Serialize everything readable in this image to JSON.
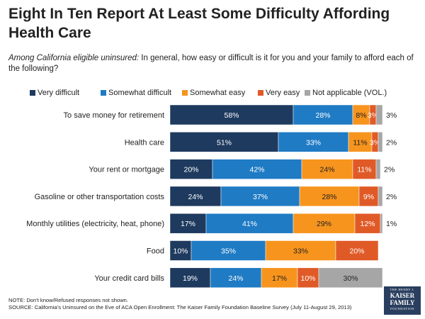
{
  "header": {
    "title": "Eight In Ten Report At Least Some Difficulty Affording Health Care",
    "subtitle_lead": "Among California eligible uninsured:",
    "subtitle_rest": " In general, how easy or difficult is it for you and your family to afford each of the following?"
  },
  "colors": {
    "Very difficult": "#1e3a5f",
    "Somewhat difficult": "#1f7bc4",
    "Somewhat easy": "#f7941d",
    "Very easy": "#e05a27",
    "Not applicable (VOL.)": "#a6a6a6"
  },
  "chart_data": {
    "type": "bar",
    "orientation": "horizontal",
    "stacked": true,
    "title": "Eight In Ten Report At Least Some Difficulty Affording Health Care",
    "xlabel": "",
    "ylabel": "",
    "xlim": [
      0,
      100
    ],
    "legend_position": "top",
    "categories": [
      "To save money for retirement",
      "Health care",
      "Your rent or mortgage",
      "Gasoline or other transportation costs",
      "Monthly utilities (electricity, heat, phone)",
      "Food",
      "Your credit card bills"
    ],
    "series": [
      {
        "name": "Very difficult",
        "values": [
          58,
          51,
          20,
          24,
          17,
          10,
          19
        ]
      },
      {
        "name": "Somewhat difficult",
        "values": [
          28,
          33,
          42,
          37,
          41,
          35,
          24
        ]
      },
      {
        "name": "Somewhat easy",
        "values": [
          8,
          11,
          24,
          28,
          29,
          33,
          17
        ]
      },
      {
        "name": "Very easy",
        "values": [
          3,
          3,
          11,
          9,
          12,
          20,
          10
        ]
      },
      {
        "name": "Not applicable (VOL.)",
        "values": [
          3,
          2,
          2,
          2,
          1,
          null,
          30
        ]
      }
    ]
  },
  "footer": {
    "note": "NOTE: Don't know/Refused responses not shown.",
    "source": "SOURCE: California's Uninsured on the Eve of ACA Open Enrollment: The Kaiser Family Foundation Baseline Survey (July 11-August 29, 2013)"
  },
  "logo": {
    "line1": "THE HENRY J.",
    "line2": "KAISER",
    "line3": "FAMILY",
    "line4": "FOUNDATION"
  }
}
